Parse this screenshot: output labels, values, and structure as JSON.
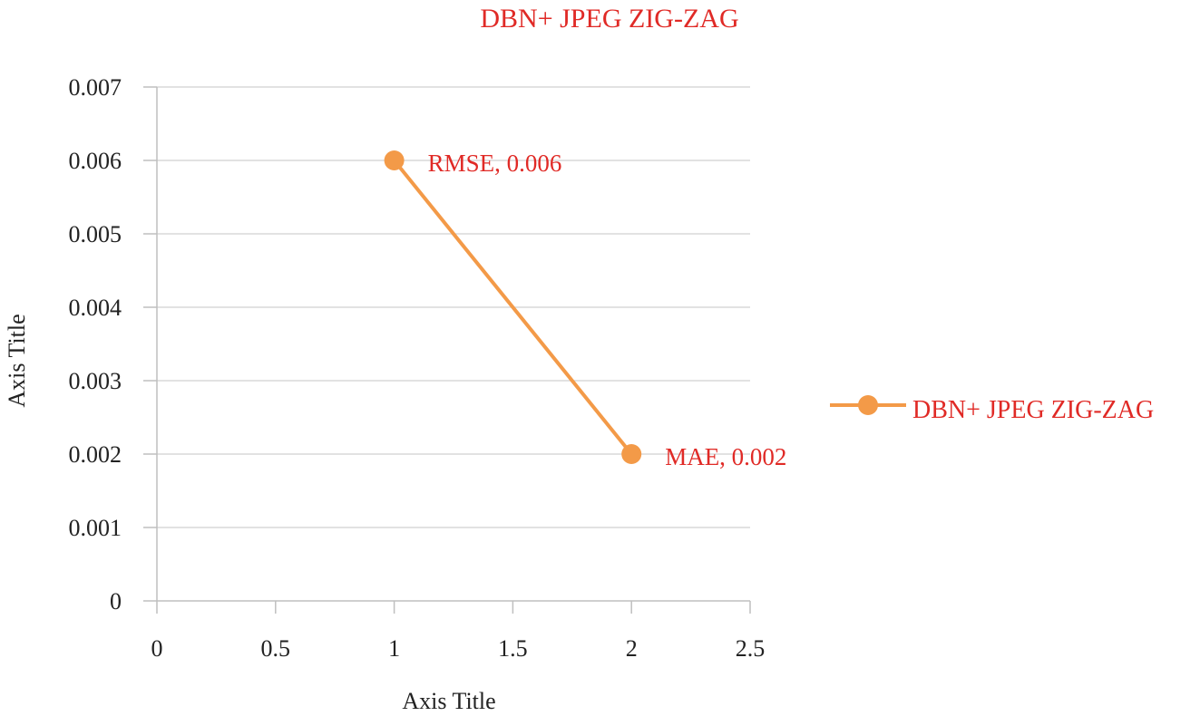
{
  "colors": {
    "series": "#F39A48",
    "label_text": "#E02A26",
    "grid": "#D9D9D9",
    "axis": "#BFBFBF",
    "tick_text": "#222222"
  },
  "chart_data": {
    "type": "scatter",
    "title": "DBN+ JPEG ZIG-ZAG",
    "xlabel": "Axis Title",
    "ylabel": "Axis Title",
    "xlim": [
      0,
      2.5
    ],
    "ylim": [
      0,
      0.007
    ],
    "xticks": [
      "0",
      "0.5",
      "1",
      "1.5",
      "2",
      "2.5"
    ],
    "yticks": [
      "0",
      "0.001",
      "0.002",
      "0.003",
      "0.004",
      "0.005",
      "0.006",
      "0.007"
    ],
    "grid": true,
    "legend": {
      "position": "right",
      "entries": [
        "DBN+ JPEG ZIG-ZAG"
      ]
    },
    "series": [
      {
        "name": "DBN+ JPEG ZIG-ZAG",
        "points": [
          {
            "x": 1,
            "y": 0.006,
            "label": "RMSE, 0.006"
          },
          {
            "x": 2,
            "y": 0.002,
            "label": "MAE, 0.002"
          }
        ]
      }
    ]
  }
}
